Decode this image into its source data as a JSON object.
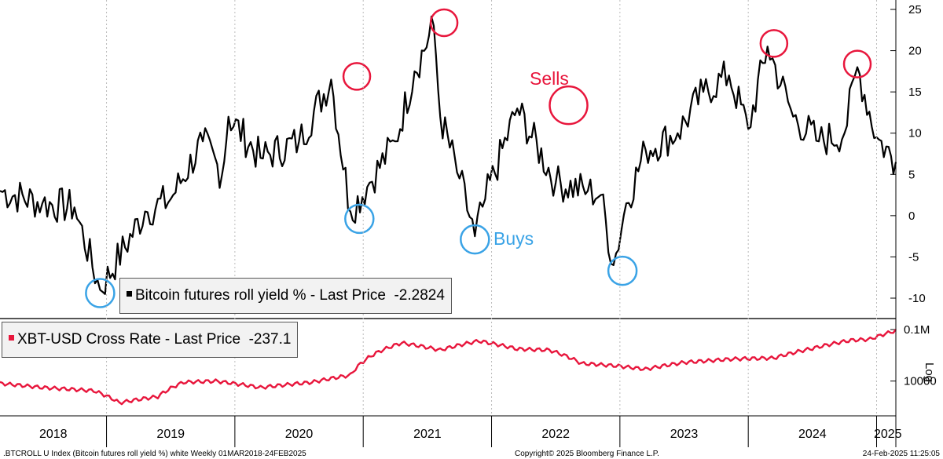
{
  "chart_data": [
    {
      "type": "line",
      "panel": "top",
      "series_name": "Bitcoin futures roll yield %",
      "legend_label": "Bitcoin futures roll yield % - Last Price",
      "last_value": "-2.2824",
      "color": "#000000",
      "ylim": [
        -12,
        25
      ],
      "yticks": [
        25,
        20,
        15,
        10,
        5,
        0,
        -5,
        -10
      ],
      "x_years": [
        2018.17,
        2018.5,
        2018.75,
        2018.95,
        2019.3,
        2019.5,
        2019.75,
        2019.9,
        2019.95,
        2020.2,
        2020.5,
        2020.75,
        2020.9,
        2021.05,
        2021.25,
        2021.4,
        2021.55,
        2021.6,
        2021.75,
        2021.87,
        2021.95,
        2022.2,
        2022.5,
        2022.75,
        2022.85,
        2022.95,
        2023.05,
        2023.2,
        2023.45,
        2023.65,
        2023.85,
        2024.0,
        2024.15,
        2024.35,
        2024.55,
        2024.75,
        2024.85,
        2025.0,
        2025.15
      ],
      "values": [
        3.0,
        1.5,
        1.0,
        -9.0,
        0.5,
        2.0,
        9.0,
        5.0,
        12.0,
        7.0,
        9.0,
        16.5,
        0.5,
        4.0,
        9.0,
        17.5,
        23.0,
        12.0,
        4.5,
        -2.5,
        2.0,
        13.0,
        4.0,
        3.0,
        2.5,
        -6.0,
        1.5,
        8.0,
        10.0,
        15.0,
        17.0,
        10.5,
        20.5,
        12.0,
        9.0,
        10.0,
        18.0,
        9.5,
        6.5
      ],
      "annotations": {
        "sells_label": "Sells",
        "buys_label": "Buys",
        "sell_peaks_year": [
          2020.95,
          2021.63,
          2022.6,
          2024.2,
          2024.85
        ],
        "sell_peaks_value": [
          16.5,
          23.0,
          13.0,
          20.5,
          18.0
        ],
        "buy_troughs_year": [
          2018.95,
          2020.97,
          2021.87,
          2023.02
        ],
        "buy_troughs_value": [
          -9.0,
          0.0,
          -2.5,
          -6.3
        ]
      }
    },
    {
      "type": "line",
      "panel": "bottom",
      "series_name": "XBT-USD Cross Rate",
      "legend_label": "XBT-USD Cross Rate - Last Price",
      "last_value": "-237.1",
      "color": "#e8163c",
      "scale": "log",
      "scale_label": "Log",
      "yticks": [
        "0.1M",
        "10000"
      ],
      "x_years": [
        2018.17,
        2018.5,
        2018.9,
        2019.1,
        2019.4,
        2019.6,
        2019.85,
        2020.2,
        2020.6,
        2020.9,
        2021.1,
        2021.3,
        2021.6,
        2021.9,
        2022.2,
        2022.45,
        2022.7,
        2022.95,
        2023.2,
        2023.5,
        2023.9,
        2024.2,
        2024.5,
        2024.8,
        2024.95,
        2025.15
      ],
      "values": [
        9000,
        7500,
        6500,
        3800,
        5000,
        9500,
        10000,
        7500,
        9500,
        13000,
        35000,
        55000,
        40000,
        60000,
        42000,
        40000,
        22000,
        20000,
        17000,
        23000,
        27000,
        28000,
        43000,
        62000,
        65000,
        95000
      ]
    }
  ],
  "x_axis": {
    "labels": [
      "2018",
      "2019",
      "2020",
      "2021",
      "2022",
      "2023",
      "2024",
      "2025"
    ]
  },
  "footer": {
    "left": ".BTCROLL U Index (Bitcoin futures roll yield %) white  Weekly 01MAR2018-24FEB2025",
    "center": "Copyright© 2025 Bloomberg Finance L.P.",
    "right": "24-Feb-2025 11:25:05"
  }
}
